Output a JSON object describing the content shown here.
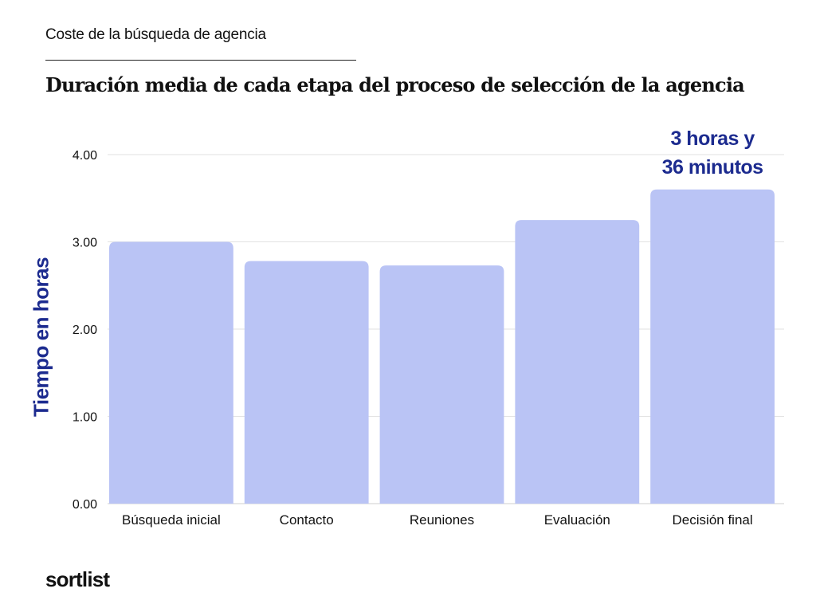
{
  "header": {
    "kicker": "Coste de la búsqueda de agencia",
    "title": "Duración media de cada etapa del proceso de selección de la agencia"
  },
  "brand": {
    "logo_text": "sortlist"
  },
  "colors": {
    "bar": "#bac4f5",
    "accent": "#1c2b8f",
    "grid": "#e2e2e2",
    "axis": "#cfcfcf"
  },
  "chart_data": {
    "type": "bar",
    "title": "Duración media de cada etapa del proceso de selección de la agencia",
    "ylabel": "Tiempo en horas",
    "xlabel": "",
    "categories": [
      "Búsqueda inicial",
      "Contacto",
      "Reuniones",
      "Evaluación",
      "Decisión final"
    ],
    "values": [
      3.0,
      2.78,
      2.73,
      3.25,
      3.6
    ],
    "ylim": [
      0,
      4
    ],
    "yticks": [
      "0.00",
      "1.00",
      "2.00",
      "3.00",
      "4.00"
    ],
    "grid": true,
    "annotations": [
      {
        "category": "Decisión final",
        "lines": [
          "3 horas y",
          "36 minutos"
        ]
      }
    ]
  }
}
